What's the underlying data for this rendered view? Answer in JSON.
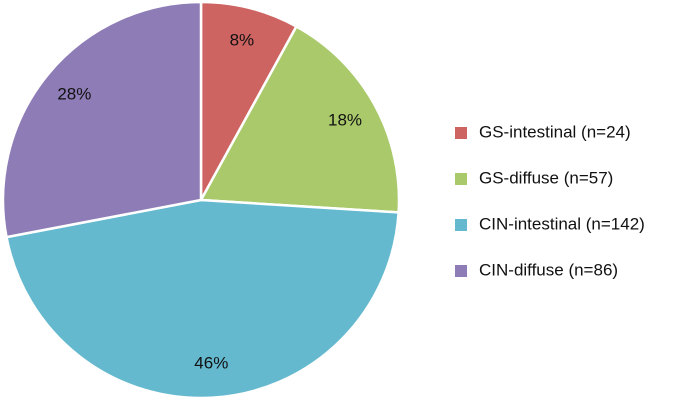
{
  "chart_data": {
    "type": "pie",
    "categories": [
      "GS-intestinal (n=24)",
      "GS-diffuse (n=57)",
      "CIN-intestinal (n=142)",
      "CIN-diffuse (n=86)"
    ],
    "values": [
      8,
      18,
      46,
      28
    ],
    "value_labels": [
      "8%",
      "18%",
      "46%",
      "28%"
    ],
    "colors": [
      "#cd6462",
      "#a9c96b",
      "#65b9cf",
      "#8e7cb6"
    ],
    "legend": "right"
  }
}
